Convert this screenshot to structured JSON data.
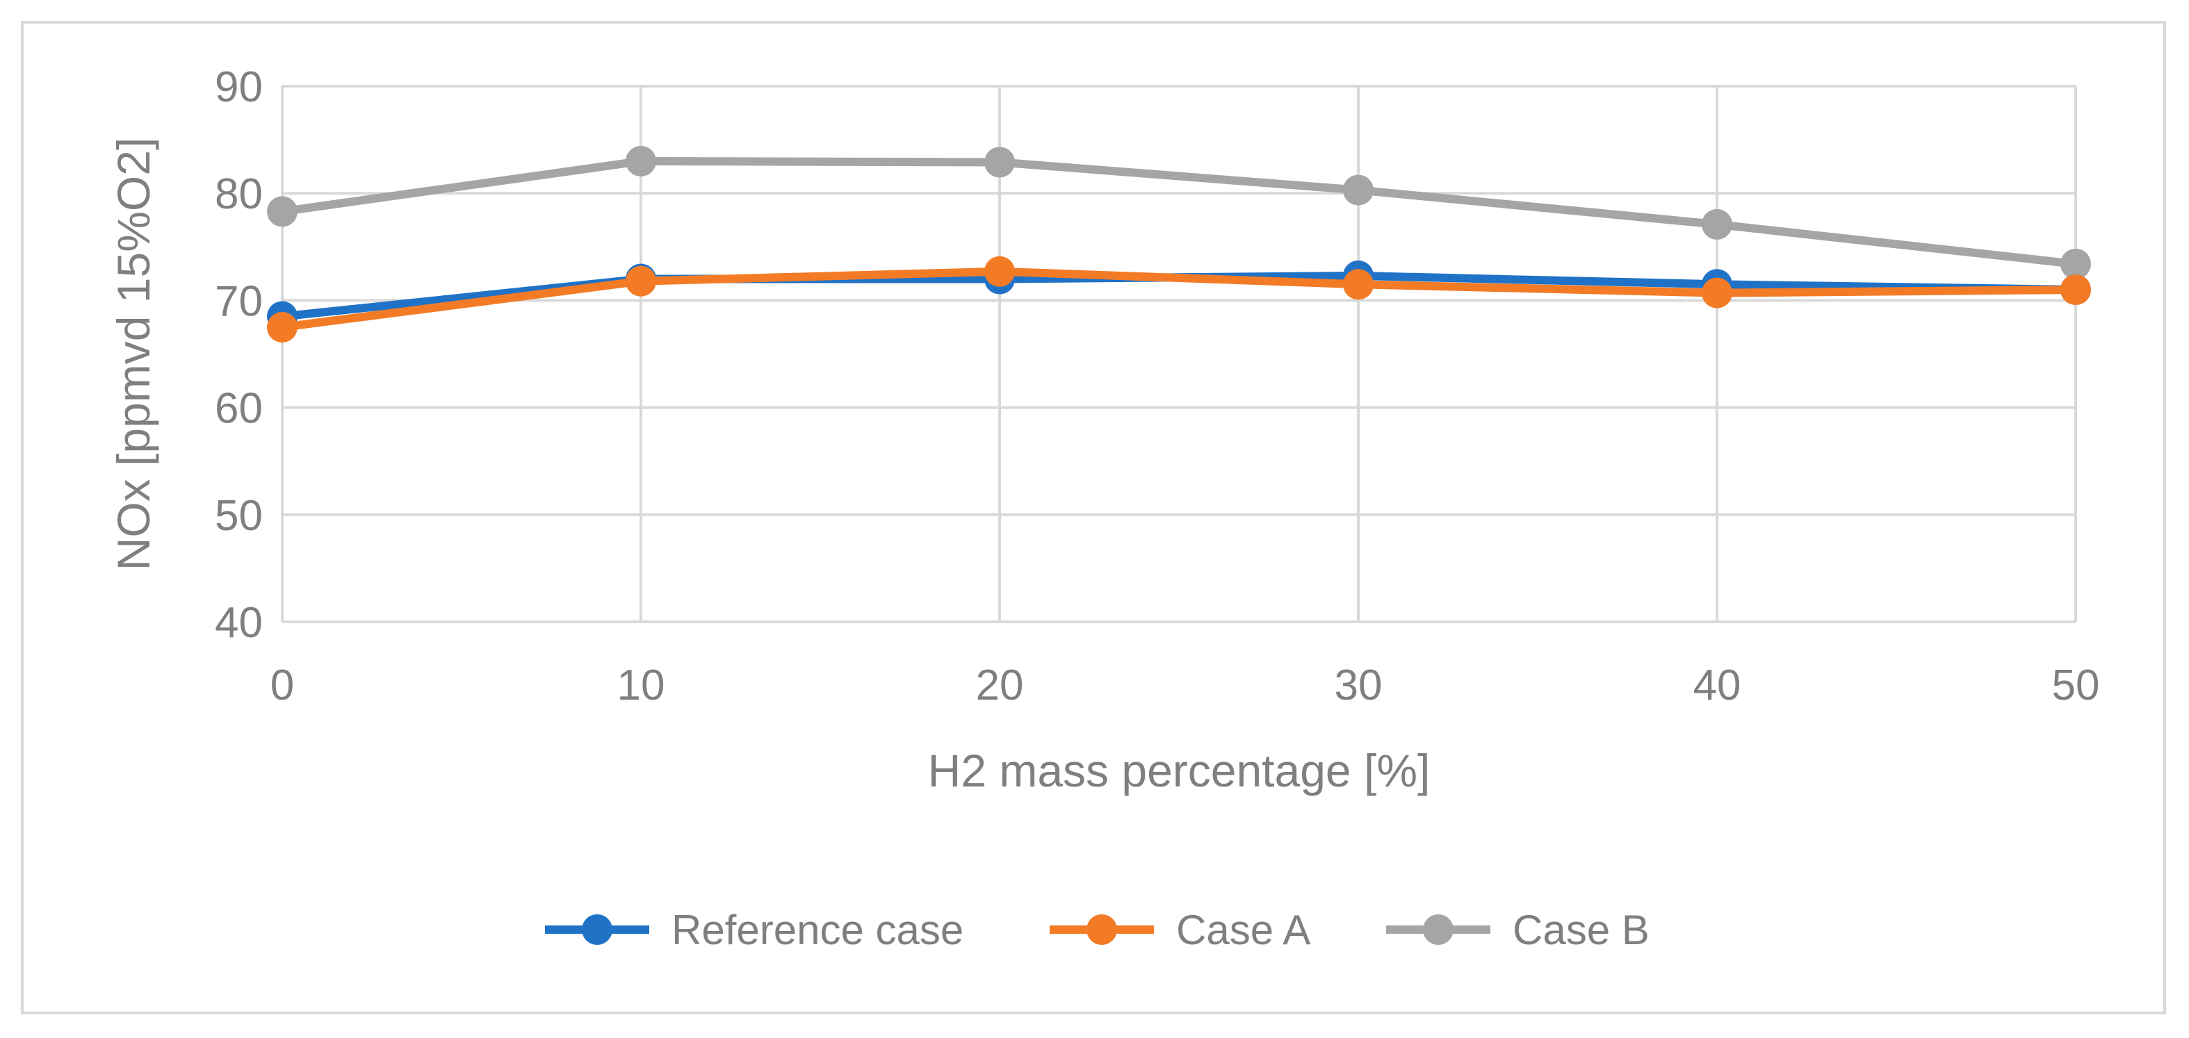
{
  "chart_data": {
    "type": "line",
    "title": "",
    "xlabel": "H2 mass percentage [%]",
    "ylabel": "NOx [ppmvd 15%O2]",
    "x": [
      0,
      10,
      20,
      30,
      40,
      50
    ],
    "xlim": [
      0,
      50
    ],
    "ylim": [
      40,
      90
    ],
    "y_ticks": [
      40,
      50,
      60,
      70,
      80,
      90
    ],
    "grid": true,
    "legend_position": "bottom",
    "series": [
      {
        "name": "Reference case",
        "color": "#1f72c6",
        "values": [
          68.5,
          72.0,
          72.0,
          72.3,
          71.5,
          71.0
        ]
      },
      {
        "name": "Case A",
        "color": "#f47b26",
        "values": [
          67.5,
          71.8,
          72.7,
          71.5,
          70.7,
          71.0
        ]
      },
      {
        "name": "Case B",
        "color": "#a5a5a5",
        "values": [
          78.3,
          83.0,
          82.9,
          80.3,
          77.1,
          73.4
        ]
      }
    ]
  }
}
